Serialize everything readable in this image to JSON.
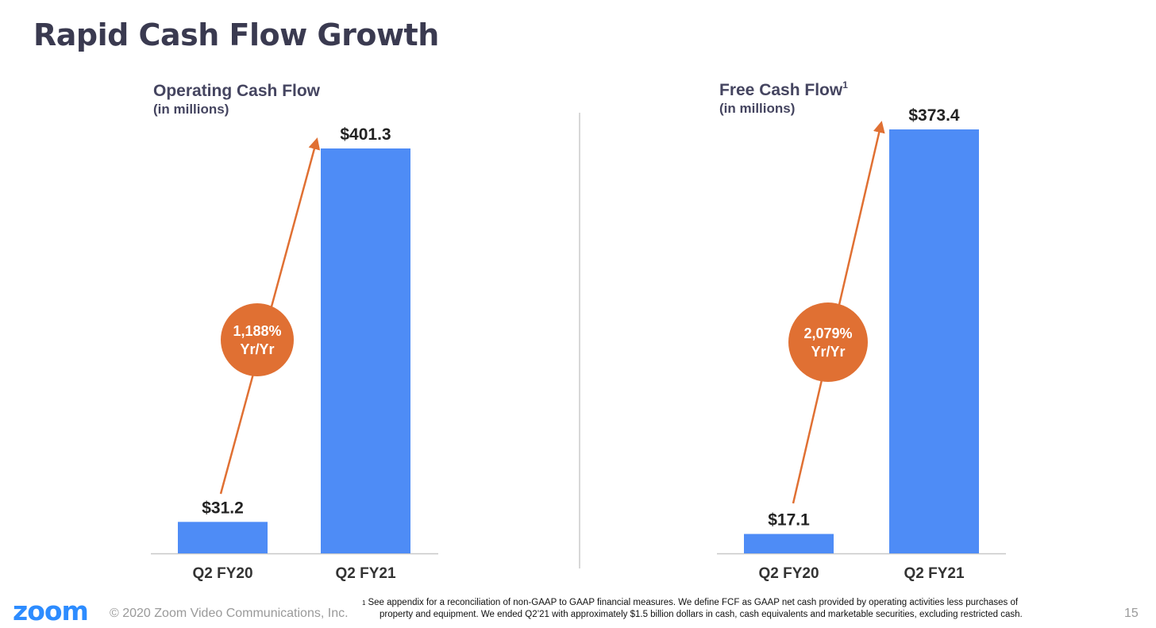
{
  "slide": {
    "title": "Rapid Cash Flow Growth",
    "logo": "zoom",
    "copyright": "© 2020 Zoom Video Communications, Inc.",
    "page_number": "15",
    "footnote": {
      "marker": "1",
      "line1": "See appendix for a reconciliation of non-GAAP to GAAP financial measures. We define FCF as GAAP net cash provided by operating activities less purchases of",
      "line2": "property and equipment. We ended Q2’21 with approximately $1.5 billion dollars in cash, cash equivalents and marketable securities, excluding restricted cash."
    }
  },
  "colors": {
    "bar": "#4e8cf6",
    "accent": "#e07033",
    "title": "#3a3a50",
    "axis": "#c8c8c8"
  },
  "chart_data": [
    {
      "type": "bar",
      "title": "Operating Cash Flow",
      "title_superscript": "",
      "subtitle": "(in millions)",
      "categories": [
        "Q2 FY20",
        "Q2 FY21"
      ],
      "values": [
        31.2,
        401.3
      ],
      "value_labels": [
        "$31.2",
        "$401.3"
      ],
      "ylim": [
        0,
        401.3
      ],
      "annotation": {
        "line1": "1,188%",
        "line2": "Yr/Yr"
      },
      "xlabel": "",
      "ylabel": ""
    },
    {
      "type": "bar",
      "title": "Free Cash Flow",
      "title_superscript": "1",
      "subtitle": "(in millions)",
      "categories": [
        "Q2 FY20",
        "Q2 FY21"
      ],
      "values": [
        17.1,
        373.4
      ],
      "value_labels": [
        "$17.1",
        "$373.4"
      ],
      "ylim": [
        0,
        373.4
      ],
      "annotation": {
        "line1": "2,079%",
        "line2": "Yr/Yr"
      },
      "xlabel": "",
      "ylabel": ""
    }
  ]
}
